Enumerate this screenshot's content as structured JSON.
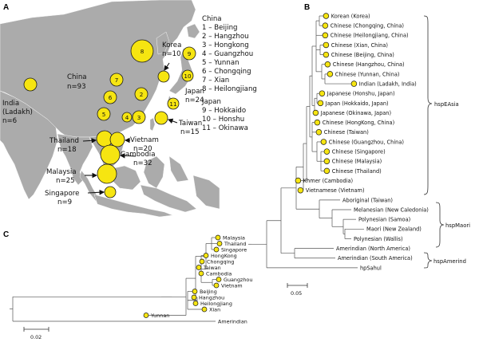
{
  "panels": {
    "a": {
      "letter": "A",
      "legend": {
        "china_head": "China",
        "china_items": [
          "1 – Beijing",
          "2 – Hangzhou",
          "3 – Hongkong",
          "4 – Guangzhou",
          "5 – Yunnan",
          "6 – Chongqing",
          "7 – Xian",
          "8 – Heilongjiang"
        ],
        "japan_head": "Japan",
        "japan_items": [
          "9 – Hokkaido",
          "10 – Honshu",
          "11 – Okinawa"
        ]
      },
      "regions": [
        {
          "key": "china",
          "name": "China",
          "n": "n=93"
        },
        {
          "key": "korea",
          "name": "Korea",
          "n": "n=10"
        },
        {
          "key": "japan",
          "name": "Japan",
          "n": "n=24"
        },
        {
          "key": "india",
          "name": "India",
          "sub": "(Ladakh)",
          "n": "n=6"
        },
        {
          "key": "taiwan",
          "name": "Taiwan",
          "n": "n=15"
        },
        {
          "key": "thailand",
          "name": "Thailand",
          "n": "n=18"
        },
        {
          "key": "vietnam",
          "name": "Vietnam",
          "n": "n=20"
        },
        {
          "key": "cambodia",
          "name": "Cambodia",
          "n": "n=32"
        },
        {
          "key": "malaysia",
          "name": "Malaysia",
          "n": "n=25"
        },
        {
          "key": "singapore",
          "name": "Singapore",
          "n": "n=9"
        }
      ],
      "circle_numbers": [
        "1",
        "2",
        "3",
        "4",
        "5",
        "6",
        "7",
        "8",
        "9",
        "10",
        "11"
      ],
      "colors": {
        "circle_fill": "#f6e511",
        "land": "#ababab",
        "sea": "#ffffff"
      }
    },
    "b": {
      "letter": "B",
      "leaves": [
        "Korean (Korea)",
        "Chinese (Chongqing, China)",
        "Chinese (Heilongjiang, China)",
        "Chinese (Xian, China)",
        "Chinese (Beijing, China)",
        "Chinese (Hangzhou, China)",
        "Chinese (Yunnan, China)",
        "Indian (Ladakh, India)",
        "Japanese (Honshu, Japan)",
        "Japan (Hokkaido, Japan)",
        "Japanese (Okinawa, Japan)",
        "Chinese (HongKong, China)",
        "Chinese (Taiwan)",
        "Chinese (Guangzhou, China)",
        "Chinese (Singapore)",
        "Chinese (Malaysia)",
        "Chinese (Thailand)",
        "Khmer (Cambodia)",
        "Vietnamese (Vietnam)",
        "Aboriginal (Taiwan)",
        "Melanesian (New Caledonia)",
        "Polynesian (Samoa)",
        "Maori (New Zealand)",
        "Polynesian (Wallis)",
        "Amerindian (North America)",
        "Amerindian (South America)",
        "hpSahul"
      ],
      "groups": [
        "hspEAsia",
        "hspMaori",
        "hspAmerind"
      ],
      "scale": "0.05"
    },
    "c": {
      "letter": "C",
      "leaves": [
        "Malaysia",
        "Thailand",
        "Singapore",
        "HongKong",
        "Chongqing",
        "Taiwan",
        "Cambodia",
        "Guangzhou",
        "Vietnam",
        "Beijing",
        "Hangzhou",
        "Heilongjiang",
        "Xian",
        "Yunnan",
        "Amerindian"
      ],
      "scale": "0.02"
    }
  }
}
